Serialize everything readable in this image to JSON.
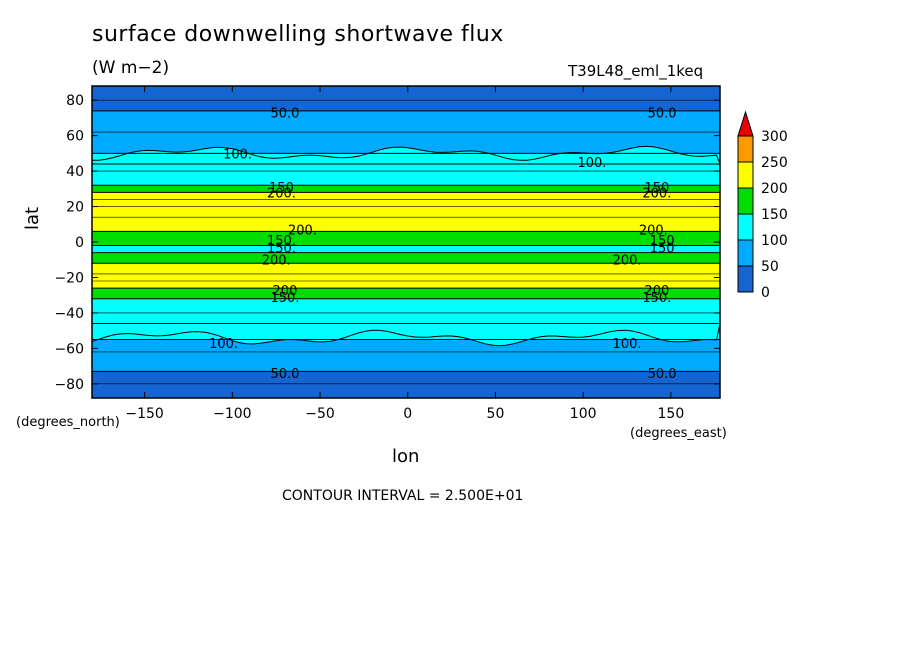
{
  "title": "surface downwelling shortwave flux",
  "units": "(W m−2)",
  "run_name": "T39L48_eml_1keq",
  "x_coord_name": "(degrees_east)",
  "y_coord_name": "(degrees_north)",
  "contour_interval_text": "CONTOUR INTERVAL = 2.500E+01",
  "chart_data": {
    "type": "heatmap",
    "plot": "filled contour map",
    "title": "surface downwelling shortwave flux",
    "units": "W m-2",
    "xlabel": "lon",
    "ylabel": "lat",
    "xlim": [
      -180,
      178
    ],
    "ylim": [
      -88,
      88
    ],
    "x_ticks": [
      -150,
      -100,
      -50,
      0,
      50,
      100,
      150
    ],
    "y_ticks": [
      80,
      60,
      40,
      20,
      0,
      -20,
      -40,
      -60,
      -80
    ],
    "colorbar": {
      "levels": [
        0,
        50,
        100,
        150,
        200,
        250,
        300
      ],
      "tick_labels": [
        "300",
        "250",
        "200",
        "150",
        "100",
        "50",
        "0"
      ],
      "colors": [
        "#1464d2",
        "#00aaff",
        "#00ffff",
        "#00dd00",
        "#ffff00",
        "#ff9900",
        "#ee0000"
      ],
      "extend": "max"
    },
    "zonal_bands": [
      {
        "lat_from": 88,
        "lat_to": 74,
        "range": "0-50"
      },
      {
        "lat_from": 74,
        "lat_to": 50,
        "range": "50-100"
      },
      {
        "lat_from": 50,
        "lat_to": 32,
        "range": "100-150"
      },
      {
        "lat_from": 32,
        "lat_to": 28,
        "range": "150-200"
      },
      {
        "lat_from": 28,
        "lat_to": 6,
        "range": "200-250"
      },
      {
        "lat_from": 6,
        "lat_to": -2,
        "range": "150-200"
      },
      {
        "lat_from": -2,
        "lat_to": -6,
        "range": "100-150"
      },
      {
        "lat_from": -6,
        "lat_to": -12,
        "range": "150-200"
      },
      {
        "lat_from": -12,
        "lat_to": -26,
        "range": "200-250"
      },
      {
        "lat_from": -26,
        "lat_to": -32,
        "range": "150-200"
      },
      {
        "lat_from": -32,
        "lat_to": -55,
        "range": "100-150"
      },
      {
        "lat_from": -55,
        "lat_to": -73,
        "range": "50-100"
      },
      {
        "lat_from": -73,
        "lat_to": -88,
        "range": "0-50"
      }
    ],
    "contour_labels": [
      {
        "text": "50.0",
        "lon": -70,
        "lat": 73
      },
      {
        "text": "50.0",
        "lon": 145,
        "lat": 73
      },
      {
        "text": "100.",
        "lon": -97,
        "lat": 50
      },
      {
        "text": "100.",
        "lon": 105,
        "lat": 45
      },
      {
        "text": "150",
        "lon": -72,
        "lat": 31
      },
      {
        "text": "200.",
        "lon": -72,
        "lat": 28
      },
      {
        "text": "150",
        "lon": 142,
        "lat": 31
      },
      {
        "text": "200.",
        "lon": 142,
        "lat": 28
      },
      {
        "text": "200.",
        "lon": -60,
        "lat": 7
      },
      {
        "text": "150.",
        "lon": -72,
        "lat": 1
      },
      {
        "text": "150.",
        "lon": -72,
        "lat": -3
      },
      {
        "text": "200.",
        "lon": -75,
        "lat": -10
      },
      {
        "text": "200.",
        "lon": 140,
        "lat": 7
      },
      {
        "text": "150",
        "lon": 145,
        "lat": 1
      },
      {
        "text": "150",
        "lon": 145,
        "lat": -3
      },
      {
        "text": "200.",
        "lon": 125,
        "lat": -10
      },
      {
        "text": "200",
        "lon": -70,
        "lat": -27
      },
      {
        "text": "150.",
        "lon": -70,
        "lat": -31
      },
      {
        "text": "200",
        "lon": 142,
        "lat": -27
      },
      {
        "text": "150.",
        "lon": 142,
        "lat": -31
      },
      {
        "text": "100.",
        "lon": -105,
        "lat": -57
      },
      {
        "text": "100.",
        "lon": 125,
        "lat": -57
      },
      {
        "text": "50.0",
        "lon": -70,
        "lat": -74
      },
      {
        "text": "50.0",
        "lon": 145,
        "lat": -74
      }
    ],
    "contour_interval": 25
  }
}
